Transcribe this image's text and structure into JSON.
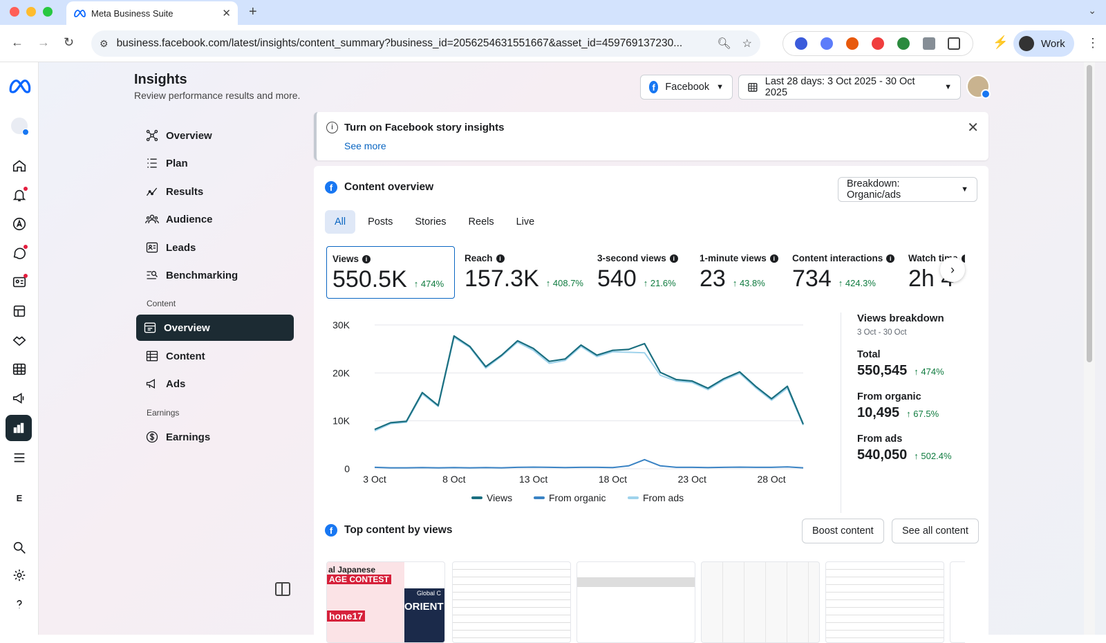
{
  "browser": {
    "tab_title": "Meta Business Suite",
    "url": "business.facebook.com/latest/insights/content_summary?business_id=2056254631551667&asset_id=459769137230...",
    "profile_label": "Work"
  },
  "header": {
    "title": "Insights",
    "subtitle": "Review performance results and more.",
    "platform": "Facebook",
    "date_range": "Last 28 days: 3 Oct 2025 - 30 Oct 2025"
  },
  "sidebar": {
    "items": [
      {
        "label": "Overview",
        "icon": "overview-icon"
      },
      {
        "label": "Plan",
        "icon": "plan-icon"
      },
      {
        "label": "Results",
        "icon": "results-icon"
      },
      {
        "label": "Audience",
        "icon": "audience-icon"
      },
      {
        "label": "Leads",
        "icon": "leads-icon"
      },
      {
        "label": "Benchmarking",
        "icon": "benchmarking-icon"
      }
    ],
    "content_heading": "Content",
    "content_items": [
      {
        "label": "Overview",
        "icon": "content-overview-icon",
        "selected": true
      },
      {
        "label": "Content",
        "icon": "table-icon"
      },
      {
        "label": "Ads",
        "icon": "megaphone-icon"
      }
    ],
    "earnings_heading": "Earnings",
    "earnings_items": [
      {
        "label": "Earnings",
        "icon": "dollar-icon"
      }
    ]
  },
  "rail": {
    "letter": "E"
  },
  "banner": {
    "title": "Turn on Facebook story insights",
    "link": "See more"
  },
  "content_overview": {
    "title": "Content overview",
    "breakdown": "Breakdown: Organic/ads",
    "tabs": [
      "All",
      "Posts",
      "Stories",
      "Reels",
      "Live"
    ],
    "selected_tab": "All",
    "metrics": [
      {
        "label": "Views",
        "value": "550.5K",
        "change": "474%"
      },
      {
        "label": "Reach",
        "value": "157.3K",
        "change": "408.7%"
      },
      {
        "label": "3-second views",
        "value": "540",
        "change": "21.6%"
      },
      {
        "label": "1-minute views",
        "value": "23",
        "change": "43.8%"
      },
      {
        "label": "Content interactions",
        "value": "734",
        "change": "424.3%"
      },
      {
        "label": "Watch time",
        "value": "2h 4",
        "change": ""
      }
    ]
  },
  "breakdown_panel": {
    "title": "Views breakdown",
    "dates": "3 Oct - 30 Oct",
    "rows": [
      {
        "label": "Total",
        "value": "550,545",
        "change": "474%"
      },
      {
        "label": "From organic",
        "value": "10,495",
        "change": "67.5%"
      },
      {
        "label": "From ads",
        "value": "540,050",
        "change": "502.4%"
      }
    ]
  },
  "chart_data": {
    "type": "line",
    "x": [
      "3 Oct",
      "4 Oct",
      "5 Oct",
      "6 Oct",
      "7 Oct",
      "8 Oct",
      "9 Oct",
      "10 Oct",
      "11 Oct",
      "12 Oct",
      "13 Oct",
      "14 Oct",
      "15 Oct",
      "16 Oct",
      "17 Oct",
      "18 Oct",
      "19 Oct",
      "20 Oct",
      "21 Oct",
      "22 Oct",
      "23 Oct",
      "24 Oct",
      "25 Oct",
      "26 Oct",
      "27 Oct",
      "28 Oct",
      "29 Oct",
      "30 Oct"
    ],
    "xticks": [
      "3 Oct",
      "8 Oct",
      "13 Oct",
      "18 Oct",
      "23 Oct",
      "28 Oct"
    ],
    "yticks": [
      "0",
      "10K",
      "20K",
      "30K"
    ],
    "ylim": [
      0,
      30000
    ],
    "series": [
      {
        "name": "Views",
        "color": "#1b6f80",
        "values": [
          8200,
          9600,
          9900,
          15900,
          13200,
          27700,
          25500,
          21300,
          23700,
          26700,
          25100,
          22400,
          22900,
          25800,
          23700,
          24700,
          24900,
          26100,
          20100,
          18600,
          18300,
          16800,
          18800,
          20200,
          17200,
          14600,
          17200,
          9300
        ]
      },
      {
        "name": "From organic",
        "color": "#3a83c4",
        "values": [
          300,
          200,
          200,
          250,
          200,
          250,
          200,
          250,
          200,
          300,
          350,
          300,
          250,
          300,
          300,
          250,
          600,
          1900,
          600,
          300,
          300,
          250,
          300,
          350,
          300,
          300,
          400,
          200
        ]
      },
      {
        "name": "From ads",
        "color": "#9fd3ec",
        "values": [
          7900,
          9400,
          9700,
          15600,
          13000,
          27400,
          25300,
          21000,
          23500,
          26400,
          24700,
          22000,
          22600,
          25500,
          23400,
          24400,
          24300,
          24200,
          19500,
          18300,
          18000,
          16500,
          18500,
          19900,
          16900,
          14300,
          16800,
          9100
        ]
      }
    ]
  },
  "top_content": {
    "title": "Top content by views",
    "boost": "Boost content",
    "see_all": "See all content",
    "thumb1_lines": [
      "al Japanese",
      "AGE CONTEST",
      "ORIENT",
      "hone17",
      "Global C"
    ]
  },
  "colors": {
    "accent": "#0a66c2",
    "positive": "#0f7b3f",
    "dark": "#1c2b33",
    "facebook": "#1877f2"
  }
}
